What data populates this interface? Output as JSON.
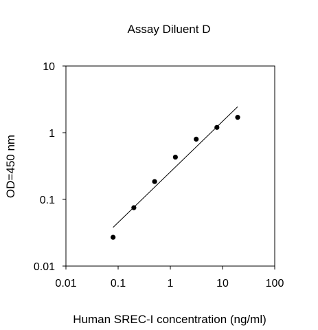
{
  "chart_data": {
    "type": "scatter",
    "title": "Assay Diluent D",
    "xlabel": "Human SREC-I concentration (ng/ml)",
    "ylabel": "OD=450 nm",
    "x_scale": "log",
    "y_scale": "log",
    "xlim": [
      0.01,
      100
    ],
    "ylim": [
      0.01,
      10
    ],
    "x_ticks": [
      0.01,
      0.1,
      1,
      10,
      100
    ],
    "x_tick_labels": [
      "0.01",
      "0.1",
      "1",
      "10",
      "100"
    ],
    "y_ticks": [
      0.01,
      0.1,
      1,
      10
    ],
    "y_tick_labels": [
      "0.01",
      "0.1",
      "1",
      "10"
    ],
    "grid": false,
    "legend": "none",
    "series": [
      {
        "x": [
          0.08,
          0.2,
          0.5,
          1.25,
          3.13,
          7.8,
          19.5
        ],
        "y": [
          0.027,
          0.075,
          0.185,
          0.43,
          0.8,
          1.2,
          1.7
        ]
      }
    ],
    "fit_line": {
      "x": [
        0.08,
        19.5
      ],
      "y": [
        0.038,
        2.45
      ]
    },
    "colors": {
      "marker": "#000000",
      "line": "#000000",
      "axis": "#000000"
    }
  }
}
